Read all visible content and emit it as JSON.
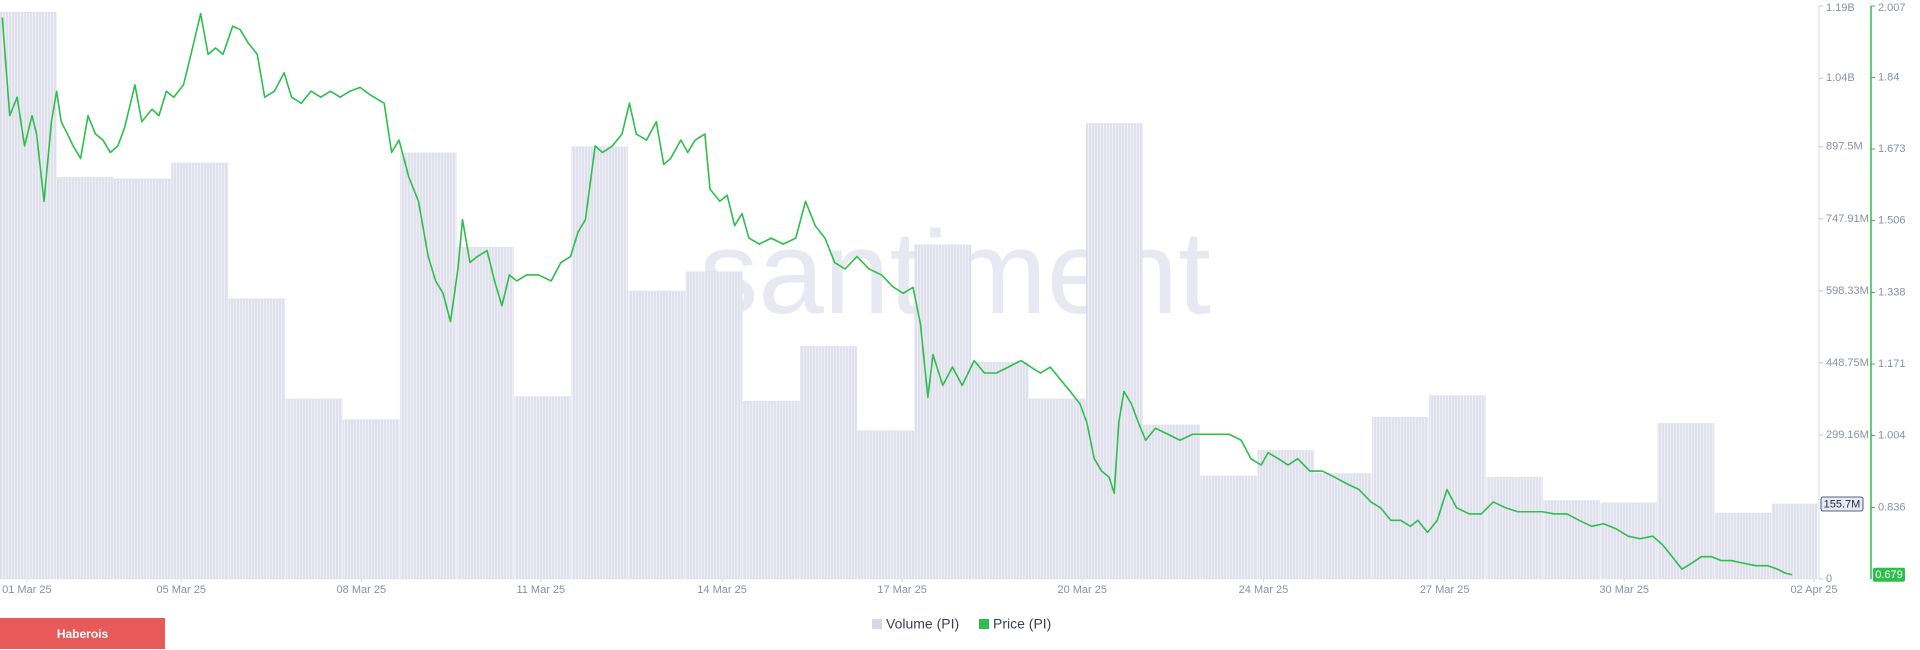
{
  "chart_data": {
    "type": "combo",
    "watermark": "santiment",
    "xlim": [
      0,
      31.8
    ],
    "xticks": [
      {
        "value": 0.47,
        "label": "01 Mar 25"
      },
      {
        "value": 3.17,
        "label": "05 Mar 25"
      },
      {
        "value": 6.32,
        "label": "08 Mar 25"
      },
      {
        "value": 9.46,
        "label": "11 Mar 25"
      },
      {
        "value": 12.63,
        "label": "14 Mar 25"
      },
      {
        "value": 15.78,
        "label": "17 Mar 25"
      },
      {
        "value": 18.93,
        "label": "20 Mar 25"
      },
      {
        "value": 22.1,
        "label": "24 Mar 25"
      },
      {
        "value": 25.27,
        "label": "27 Mar 25"
      },
      {
        "value": 28.41,
        "label": "30 Mar 25"
      },
      {
        "value": 31.73,
        "label": "02 Apr 25"
      }
    ],
    "ylim": [
      0,
      1190000000
    ],
    "yticks": [
      0,
      {
        "value": 299160000,
        "label": "299.16M"
      },
      {
        "value": 448750000,
        "label": "448.75M"
      },
      {
        "value": 598330000,
        "label": "598.33M"
      },
      {
        "value": 747910000,
        "label": "747.91M"
      },
      {
        "value": 897500000,
        "label": "897.5M"
      },
      {
        "value": 1040000000,
        "label": "1.04B"
      },
      {
        "value": 1190000000,
        "label": "1.19B"
      }
    ],
    "y2lim": [
      0.669,
      2.007
    ],
    "y2ticks": [
      0.836,
      1.004,
      1.171,
      1.338,
      1.506,
      1.673,
      1.84,
      2.007
    ],
    "grid": false,
    "series": [
      {
        "name": "Volume (PI)",
        "type": "bar",
        "color": "#dfe0ec",
        "axis": "y",
        "x": [
          0,
          1,
          2,
          3,
          4,
          5,
          6,
          7,
          8,
          9,
          10,
          11,
          12,
          13,
          14,
          15,
          16,
          17,
          18,
          19,
          20,
          21,
          22,
          23,
          24,
          25,
          26,
          27,
          28,
          29,
          30,
          31
        ],
        "values": [
          1177000000,
          834000000,
          831000000,
          864000000,
          582000000,
          374000000,
          331000000,
          885000000,
          689000000,
          379000000,
          898000000,
          598000000,
          638000000,
          369000000,
          483000000,
          308000000,
          694000000,
          450000000,
          374000000,
          946000000,
          320000000,
          214000000,
          267000000,
          219000000,
          336000000,
          381000000,
          211000000,
          163000000,
          158000000,
          323000000,
          137000000,
          155700000
        ],
        "last_label": "155.7M"
      },
      {
        "name": "Price (PI)",
        "type": "line",
        "color": "#2dbf4b",
        "axis": "y2",
        "x": [
          0.04,
          0.17,
          0.3,
          0.43,
          0.56,
          0.64,
          0.77,
          0.9,
          0.99,
          1.07,
          1.18,
          1.28,
          1.41,
          1.54,
          1.67,
          1.8,
          1.93,
          2.06,
          2.18,
          2.36,
          2.48,
          2.66,
          2.78,
          2.91,
          3.04,
          3.21,
          3.34,
          3.51,
          3.64,
          3.77,
          3.9,
          4.07,
          4.2,
          4.33,
          4.5,
          4.63,
          4.8,
          4.97,
          5.1,
          5.27,
          5.44,
          5.61,
          5.78,
          5.95,
          6.12,
          6.3,
          6.47,
          6.72,
          6.85,
          6.98,
          7.15,
          7.32,
          7.49,
          7.62,
          7.75,
          7.88,
          8.01,
          8.09,
          8.22,
          8.35,
          8.52,
          8.65,
          8.78,
          8.91,
          9.04,
          9.21,
          9.42,
          9.64,
          9.81,
          9.98,
          10.11,
          10.24,
          10.41,
          10.54,
          10.71,
          10.88,
          11.01,
          11.13,
          11.31,
          11.48,
          11.61,
          11.73,
          11.91,
          12.03,
          12.16,
          12.33,
          12.42,
          12.59,
          12.72,
          12.85,
          12.98,
          13.1,
          13.28,
          13.49,
          13.7,
          13.92,
          14.09,
          14.26,
          14.43,
          14.6,
          14.78,
          14.99,
          15.2,
          15.42,
          15.63,
          15.8,
          15.97,
          16.1,
          16.23,
          16.32,
          16.49,
          16.66,
          16.83,
          17.04,
          17.22,
          17.43,
          17.64,
          17.86,
          18.03,
          18.2,
          18.37,
          18.54,
          18.72,
          18.89,
          19.01,
          19.14,
          19.27,
          19.4,
          19.49,
          19.57,
          19.66,
          19.79,
          19.91,
          20.04,
          20.21,
          20.43,
          20.64,
          20.86,
          21.07,
          21.28,
          21.5,
          21.71,
          21.88,
          22.06,
          22.18,
          22.36,
          22.53,
          22.7,
          22.91,
          23.13,
          23.34,
          23.55,
          23.77,
          23.98,
          24.15,
          24.33,
          24.5,
          24.67,
          24.8,
          24.97,
          25.14,
          25.31,
          25.48,
          25.7,
          25.91,
          26.12,
          26.34,
          26.55,
          26.77,
          26.98,
          27.19,
          27.41,
          27.62,
          27.84,
          28.05,
          28.27,
          28.48,
          28.69,
          28.91,
          29.08,
          29.25,
          29.42,
          29.59,
          29.76,
          29.94,
          30.11,
          30.28,
          30.49,
          30.71,
          30.92,
          31.09,
          31.22,
          31.35
        ],
        "values": [
          1.98,
          1.751,
          1.794,
          1.68,
          1.751,
          1.708,
          1.551,
          1.737,
          1.808,
          1.737,
          1.708,
          1.68,
          1.651,
          1.751,
          1.708,
          1.694,
          1.665,
          1.68,
          1.723,
          1.823,
          1.737,
          1.766,
          1.751,
          1.808,
          1.794,
          1.823,
          1.894,
          1.989,
          1.894,
          1.909,
          1.894,
          1.96,
          1.952,
          1.923,
          1.894,
          1.794,
          1.808,
          1.851,
          1.794,
          1.78,
          1.808,
          1.794,
          1.808,
          1.794,
          1.808,
          1.817,
          1.8,
          1.78,
          1.665,
          1.694,
          1.608,
          1.551,
          1.422,
          1.365,
          1.336,
          1.27,
          1.393,
          1.508,
          1.408,
          1.422,
          1.436,
          1.365,
          1.307,
          1.379,
          1.365,
          1.379,
          1.379,
          1.365,
          1.408,
          1.422,
          1.479,
          1.508,
          1.68,
          1.665,
          1.68,
          1.708,
          1.78,
          1.708,
          1.694,
          1.737,
          1.637,
          1.651,
          1.694,
          1.665,
          1.694,
          1.708,
          1.579,
          1.551,
          1.565,
          1.494,
          1.522,
          1.465,
          1.451,
          1.465,
          1.451,
          1.465,
          1.551,
          1.494,
          1.465,
          1.408,
          1.393,
          1.422,
          1.393,
          1.379,
          1.35,
          1.336,
          1.35,
          1.265,
          1.093,
          1.193,
          1.121,
          1.164,
          1.121,
          1.179,
          1.15,
          1.15,
          1.164,
          1.179,
          1.164,
          1.15,
          1.164,
          1.136,
          1.107,
          1.078,
          1.035,
          0.95,
          0.921,
          0.907,
          0.869,
          1.035,
          1.107,
          1.078,
          1.035,
          0.993,
          1.021,
          1.007,
          0.993,
          1.007,
          1.007,
          1.007,
          1.007,
          0.993,
          0.95,
          0.935,
          0.964,
          0.95,
          0.935,
          0.95,
          0.921,
          0.921,
          0.907,
          0.892,
          0.878,
          0.849,
          0.835,
          0.806,
          0.806,
          0.792,
          0.806,
          0.778,
          0.806,
          0.878,
          0.835,
          0.821,
          0.821,
          0.849,
          0.835,
          0.826,
          0.826,
          0.826,
          0.821,
          0.821,
          0.806,
          0.792,
          0.798,
          0.786,
          0.769,
          0.763,
          0.769,
          0.749,
          0.721,
          0.692,
          0.706,
          0.721,
          0.721,
          0.712,
          0.712,
          0.706,
          0.7,
          0.7,
          0.692,
          0.683,
          0.679
        ],
        "last_label": "0.679"
      }
    ]
  },
  "footer_button": "Haberois"
}
